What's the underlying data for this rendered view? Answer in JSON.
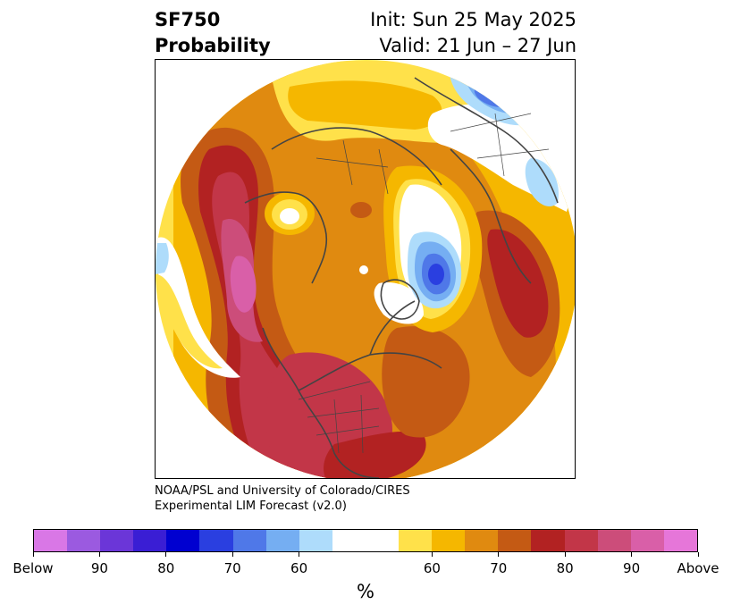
{
  "header": {
    "title_line1": "SF750",
    "title_line2": "Probability",
    "init_text": "Init: Sun 25 May 2025",
    "valid_text": "Valid: 21 Jun – 27 Jun"
  },
  "credit": {
    "line1": "NOAA/PSL and University of Colorado/CIRES",
    "line2": "Experimental LIM Forecast (v2.0)"
  },
  "colorbar": {
    "unit": "%",
    "tick_labels": [
      "Below",
      "90",
      "80",
      "70",
      "60",
      "60",
      "70",
      "80",
      "90",
      "Above"
    ],
    "colors": [
      "#d977e6",
      "#9b5ae0",
      "#6b36d8",
      "#3a1ed4",
      "#0000d0",
      "#2a3fe0",
      "#4f78e8",
      "#75aef2",
      "#aedcfb",
      "#ffffff",
      "#ffe14a",
      "#f5b700",
      "#e08a10",
      "#c45a14",
      "#b22222",
      "#c23648",
      "#cc4d7a",
      "#d95fa8",
      "#e676d9"
    ]
  },
  "map": {
    "projection": "north-polar-stereographic",
    "field": "SF750 probability",
    "colors": {
      "yellow": "#ffe14a",
      "gold": "#f5b700",
      "orange": "#e08a10",
      "burnt": "#c45a14",
      "red": "#b22222",
      "crimson": "#c23648",
      "rose": "#cc4d7a",
      "pink": "#d95fa8",
      "lightblue": "#aedcfb",
      "midblue": "#75aef2",
      "blue": "#4f78e8",
      "deepblue": "#2a3fe0",
      "coast": "#444444"
    }
  }
}
